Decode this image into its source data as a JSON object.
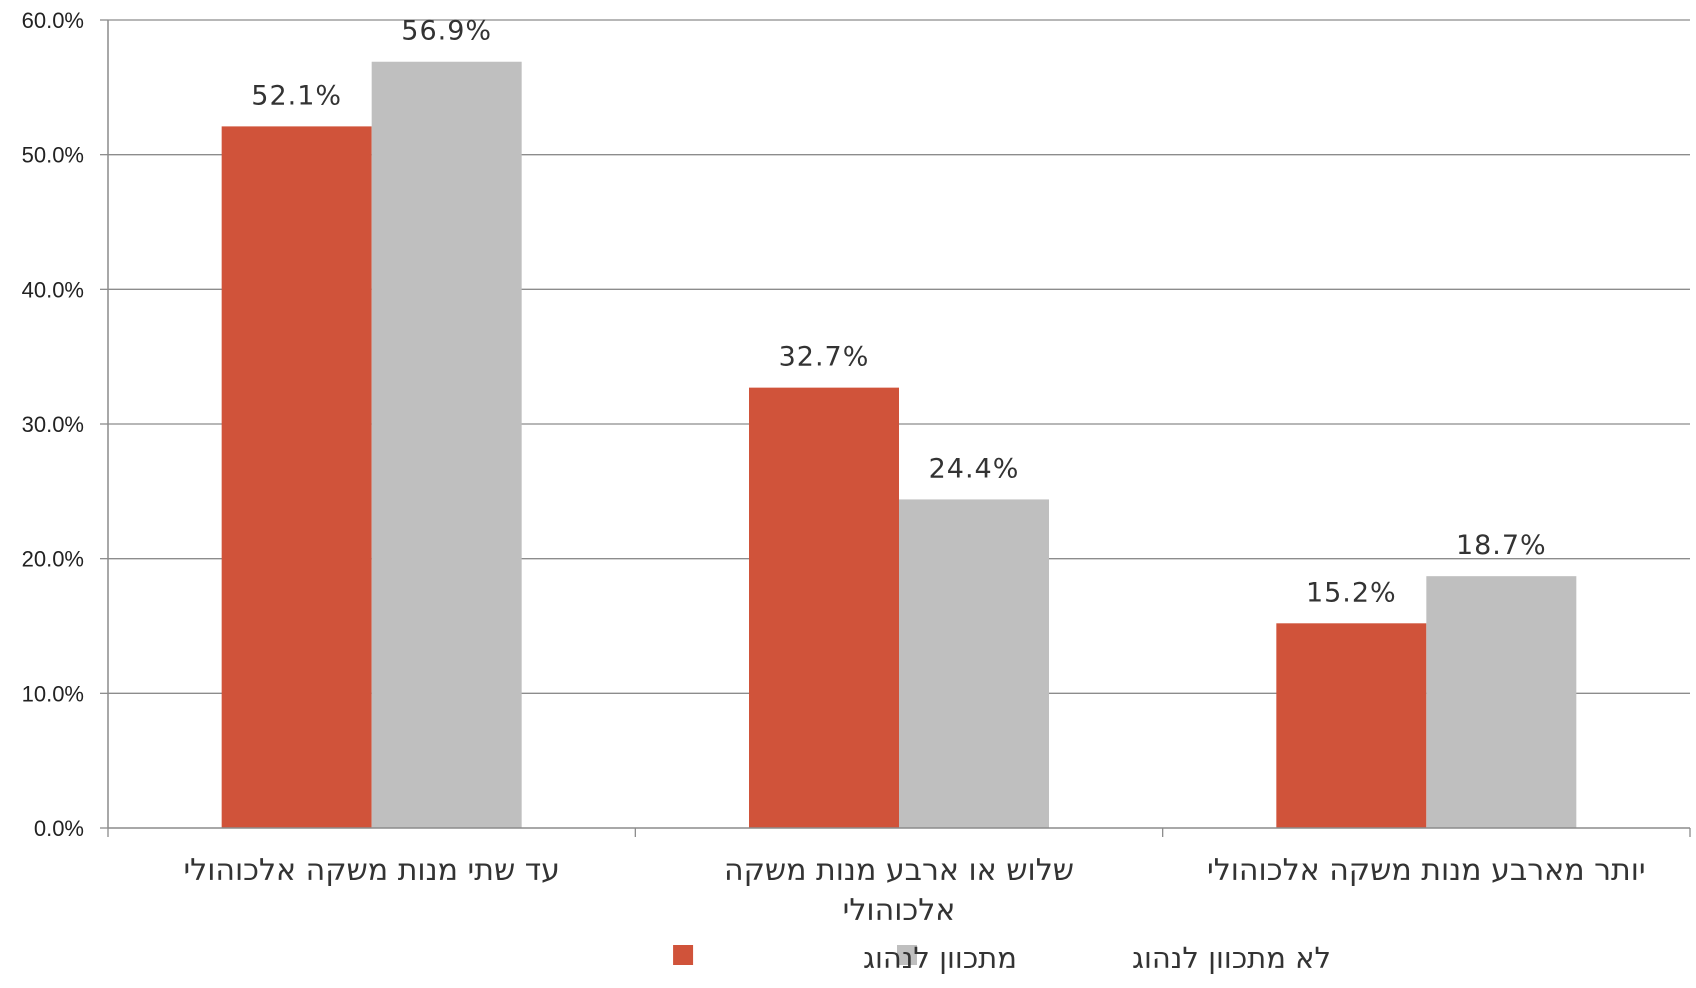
{
  "chart_data": {
    "type": "bar",
    "categories": [
      [
        "עד שתי מנות משקה אלכוהולי"
      ],
      [
        "שלוש או ארבע מנות משקה",
        "אלכוהולי"
      ],
      [
        "יותר מארבע מנות משקה אלכוהולי"
      ]
    ],
    "series": [
      {
        "name": "מתכוון לנהוג",
        "color": "#d0533a",
        "values": [
          52.1,
          32.7,
          15.2
        ],
        "labels": [
          "52.1%",
          "32.7%",
          "15.2%"
        ]
      },
      {
        "name": "לא מתכוון לנהוג",
        "color": "#bfbfbf",
        "values": [
          56.9,
          24.4,
          18.7
        ],
        "labels": [
          "56.9%",
          "24.4%",
          "18.7%"
        ]
      }
    ],
    "ylim": [
      0,
      60
    ],
    "yticks": [
      "0.0%",
      "10.0%",
      "20.0%",
      "30.0%",
      "40.0%",
      "50.0%",
      "60.0%"
    ],
    "grid": true,
    "legend_position": "bottom"
  }
}
